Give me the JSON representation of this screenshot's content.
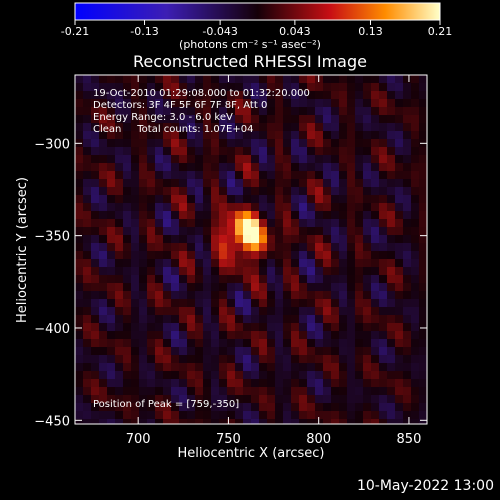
{
  "colorbar": {
    "ticks": [
      "-0.21",
      "-0.13",
      "-0.043",
      "0.043",
      "0.13",
      "0.21"
    ],
    "tick_values": [
      -0.21,
      -0.13,
      -0.043,
      0.043,
      0.13,
      0.21
    ],
    "range": [
      -0.21,
      0.21
    ],
    "label": "(photons cm⁻² s⁻¹ asec⁻²)"
  },
  "chart_data": {
    "type": "heatmap",
    "title": "Reconstructed RHESSI Image",
    "xlabel": "Heliocentric X (arcsec)",
    "ylabel": "Heliocentric Y (arcsec)",
    "xlim": [
      665,
      860
    ],
    "ylim": [
      -452,
      -263
    ],
    "x_ticks": [
      700,
      750,
      800,
      850
    ],
    "y_ticks": [
      -300,
      -350,
      -400,
      -450
    ],
    "colormap": "black-blue-purple-red-orange-yellow-white",
    "peak": {
      "x": 759,
      "y": -350,
      "value": 0.21
    },
    "annotations": [
      "19-Oct-2010 01:29:08.000 to 01:32:20.000",
      "Detectors: 3F 4F 5F 6F 7F 8F, Att 0",
      "Energy Range: 3.0 - 6.0 keV",
      "Clean     Total counts: 1.07E+04"
    ],
    "peak_label": "Position of Peak = [759,-350]",
    "grid": false
  },
  "footer": {
    "timestamp": "10-May-2022 13:00"
  }
}
